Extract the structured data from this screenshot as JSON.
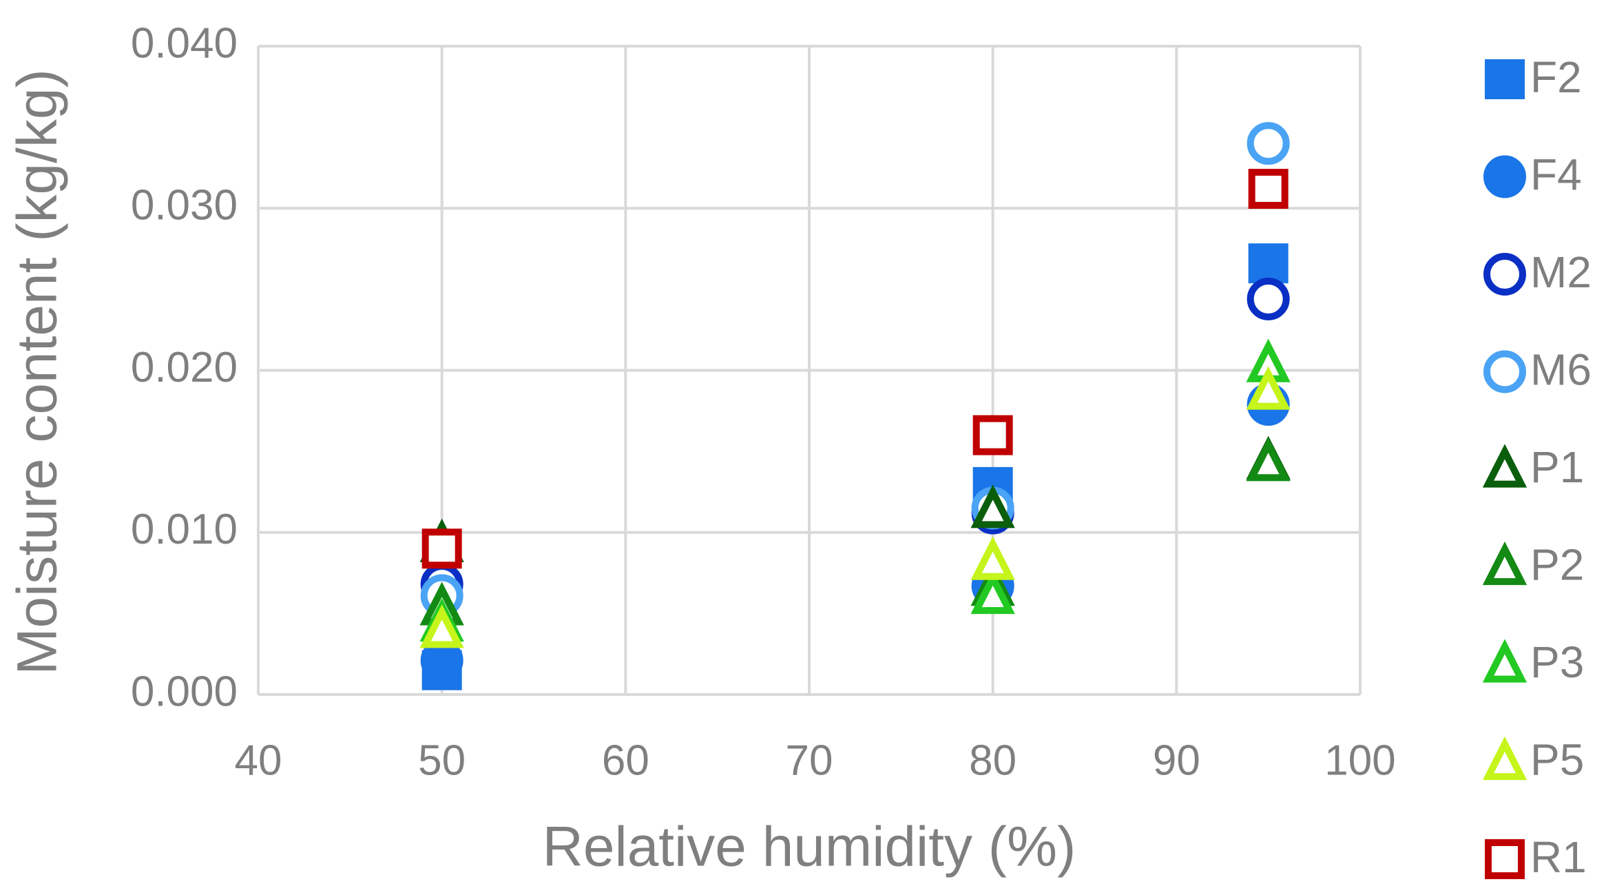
{
  "chart_data": {
    "type": "scatter",
    "x_label": "Relative humidity (%)",
    "y_label": "Moisture content (kg/kg)",
    "xlim": [
      40,
      100
    ],
    "xticks": [
      40,
      50,
      60,
      70,
      80,
      90,
      100
    ],
    "ylim": [
      0,
      0.04
    ],
    "yticks": [
      {
        "value": 0,
        "label": "0.000"
      },
      {
        "value": 0.01,
        "label": "0.010"
      },
      {
        "value": 0.02,
        "label": "0.020"
      },
      {
        "value": 0.03,
        "label": "0.030"
      },
      {
        "value": 0.04,
        "label": "0.040"
      }
    ],
    "grid": true,
    "legend": "right",
    "series": [
      {
        "name": "F2",
        "color": "#1a75e8",
        "marker": "square",
        "filled": true,
        "x": [
          50,
          80,
          95
        ],
        "values": [
          0.0015,
          0.0128,
          0.0266
        ]
      },
      {
        "name": "F4",
        "color": "#1a75e8",
        "marker": "circle",
        "filled": true,
        "x": [
          50,
          80,
          95
        ],
        "values": [
          0.0021,
          0.0067,
          0.0179
        ]
      },
      {
        "name": "M2",
        "color": "#0a2fc4",
        "marker": "circle",
        "filled": false,
        "x": [
          50,
          80,
          95
        ],
        "values": [
          0.0068,
          0.0112,
          0.0244
        ]
      },
      {
        "name": "M6",
        "color": "#4aa3f5",
        "marker": "circle",
        "filled": false,
        "x": [
          50,
          80,
          95
        ],
        "values": [
          0.0061,
          0.0115,
          0.034
        ]
      },
      {
        "name": "P1",
        "color": "#0b5e0b",
        "marker": "triangle",
        "filled": false,
        "x": [
          50,
          80,
          95
        ],
        "values": [
          0.0093,
          0.0114,
          0.0144
        ]
      },
      {
        "name": "P2",
        "color": "#138a13",
        "marker": "triangle",
        "filled": false,
        "x": [
          50,
          80,
          95
        ],
        "values": [
          0.0054,
          0.0066,
          0.0143
        ]
      },
      {
        "name": "P3",
        "color": "#22c922",
        "marker": "triangle",
        "filled": false,
        "x": [
          50,
          80,
          95
        ],
        "values": [
          0.0044,
          0.0061,
          0.0204
        ]
      },
      {
        "name": "P5",
        "color": "#c5f51a",
        "marker": "triangle",
        "filled": false,
        "x": [
          50,
          80,
          95
        ],
        "values": [
          0.004,
          0.0082,
          0.0187
        ]
      },
      {
        "name": "R1",
        "color": "#c00000",
        "marker": "square",
        "filled": false,
        "x": [
          50,
          80,
          95
        ],
        "values": [
          0.009,
          0.016,
          0.0312
        ]
      }
    ]
  }
}
